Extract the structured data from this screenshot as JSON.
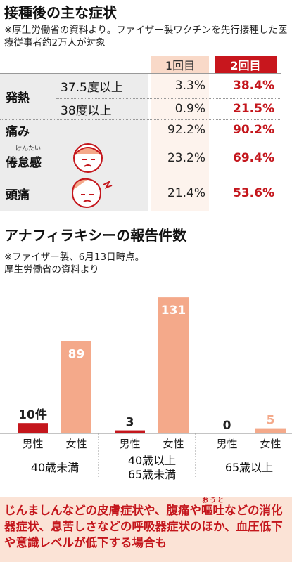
{
  "table": {
    "title": "接種後の主な症状",
    "note": "※厚生労働省の資料より。ファイザー製ワクチンを先行接種した医療従事者約2万人が対象",
    "columns": [
      "1回目",
      "2回目"
    ],
    "rows": [
      {
        "label": "発熱",
        "sub": [
          {
            "label": "37.5度以上",
            "values": [
              "3.3%",
              "38.4%"
            ]
          },
          {
            "label": "38度以上",
            "values": [
              "0.9%",
              "21.5%"
            ]
          }
        ]
      },
      {
        "label": "痛み",
        "values": [
          "92.2%",
          "90.2%"
        ]
      },
      {
        "label": "倦怠感",
        "ruby": "けんたい",
        "values": [
          "23.2%",
          "69.4%"
        ]
      },
      {
        "label": "頭痛",
        "values": [
          "21.4%",
          "53.6%"
        ]
      }
    ]
  },
  "chart_data": {
    "type": "bar",
    "title": "アナフィラキシーの報告件数",
    "subtitle": [
      "※ファイザー製、6月13日時点。",
      "厚生労働省の資料より"
    ],
    "categories": [
      [
        "40歳未満"
      ],
      [
        "40歳以上",
        "65歳未満"
      ],
      [
        "65歳以上"
      ]
    ],
    "series": [
      {
        "name": "男性",
        "color": "#c4161c",
        "values": [
          10,
          3,
          0
        ],
        "value_labels": [
          "10件",
          "3",
          "0"
        ]
      },
      {
        "name": "女性",
        "color": "#f4a98a",
        "values": [
          89,
          131,
          5
        ]
      }
    ]
  },
  "footer": {
    "before": "じんましんなどの皮膚症状や、腹痛や",
    "ruby_base": "嘔吐",
    "ruby_text": "おうと",
    "after": "などの消化器症状、息苦しさなどの呼吸器症状のほか、血圧低下や意識レベルが低下する場合も"
  }
}
